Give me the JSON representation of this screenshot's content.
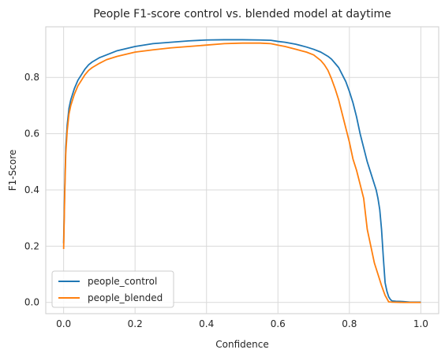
{
  "chart_data": {
    "type": "line",
    "title": "People F1-score control vs. blended model at daytime",
    "xlabel": "Confidence",
    "ylabel": "F1-Score",
    "xlim": [
      -0.05,
      1.05
    ],
    "ylim": [
      -0.04,
      0.98
    ],
    "xticks": [
      0.0,
      0.2,
      0.4,
      0.6,
      0.8,
      1.0
    ],
    "xtick_labels": [
      "0.0",
      "0.2",
      "0.4",
      "0.6",
      "0.8",
      "1.0"
    ],
    "yticks": [
      0.0,
      0.2,
      0.4,
      0.6,
      0.8
    ],
    "ytick_labels": [
      "0.0",
      "0.2",
      "0.4",
      "0.6",
      "0.8"
    ],
    "grid": true,
    "legend_position": "bottom-left",
    "series": [
      {
        "name": "people_control",
        "color": "#1f77b4",
        "x": [
          0.0,
          0.003,
          0.006,
          0.01,
          0.015,
          0.02,
          0.03,
          0.04,
          0.05,
          0.06,
          0.07,
          0.08,
          0.1,
          0.12,
          0.15,
          0.2,
          0.25,
          0.3,
          0.35,
          0.4,
          0.45,
          0.5,
          0.55,
          0.58,
          0.6,
          0.62,
          0.65,
          0.68,
          0.7,
          0.72,
          0.74,
          0.75,
          0.76,
          0.77,
          0.78,
          0.79,
          0.8,
          0.81,
          0.82,
          0.83,
          0.84,
          0.85,
          0.86,
          0.87,
          0.875,
          0.88,
          0.885,
          0.89,
          0.895,
          0.9,
          0.905,
          0.91,
          0.915,
          0.92,
          0.93,
          0.95,
          0.97,
          1.0
        ],
        "values": [
          0.21,
          0.4,
          0.55,
          0.63,
          0.69,
          0.72,
          0.76,
          0.79,
          0.81,
          0.83,
          0.845,
          0.855,
          0.87,
          0.88,
          0.895,
          0.91,
          0.92,
          0.925,
          0.93,
          0.933,
          0.934,
          0.934,
          0.933,
          0.932,
          0.928,
          0.925,
          0.918,
          0.908,
          0.9,
          0.89,
          0.875,
          0.865,
          0.85,
          0.835,
          0.81,
          0.785,
          0.75,
          0.71,
          0.66,
          0.6,
          0.55,
          0.5,
          0.46,
          0.42,
          0.4,
          0.37,
          0.33,
          0.26,
          0.16,
          0.07,
          0.04,
          0.02,
          0.01,
          0.005,
          0.004,
          0.003,
          0.001,
          0.001
        ]
      },
      {
        "name": "people_blended",
        "color": "#ff7f0e",
        "x": [
          0.0,
          0.003,
          0.006,
          0.01,
          0.015,
          0.02,
          0.03,
          0.04,
          0.05,
          0.06,
          0.07,
          0.08,
          0.1,
          0.12,
          0.15,
          0.2,
          0.25,
          0.3,
          0.35,
          0.4,
          0.45,
          0.5,
          0.55,
          0.58,
          0.6,
          0.62,
          0.65,
          0.68,
          0.7,
          0.72,
          0.73,
          0.74,
          0.75,
          0.76,
          0.77,
          0.78,
          0.79,
          0.8,
          0.81,
          0.82,
          0.83,
          0.84,
          0.85,
          0.86,
          0.87,
          0.88,
          0.89,
          0.9,
          0.91,
          0.92,
          0.95,
          1.0
        ],
        "values": [
          0.19,
          0.38,
          0.53,
          0.61,
          0.67,
          0.7,
          0.74,
          0.77,
          0.79,
          0.81,
          0.825,
          0.835,
          0.85,
          0.863,
          0.875,
          0.89,
          0.898,
          0.905,
          0.91,
          0.915,
          0.92,
          0.922,
          0.922,
          0.92,
          0.915,
          0.91,
          0.9,
          0.89,
          0.88,
          0.86,
          0.845,
          0.825,
          0.795,
          0.76,
          0.72,
          0.67,
          0.62,
          0.57,
          0.51,
          0.47,
          0.42,
          0.37,
          0.26,
          0.2,
          0.14,
          0.1,
          0.06,
          0.025,
          0.002,
          0.001,
          0.0,
          0.0
        ]
      }
    ]
  }
}
